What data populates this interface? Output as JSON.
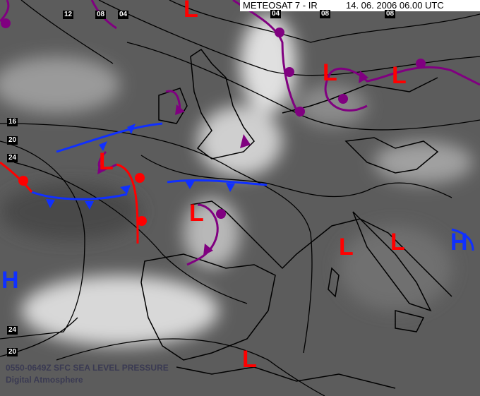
{
  "header": {
    "satellite": "METEOSAT 7 - IR",
    "datetime": "14. 06. 2006 06.00 UTC"
  },
  "isobar_labels": [
    {
      "id": "top-12",
      "text": "12"
    },
    {
      "id": "top-08a",
      "text": "08"
    },
    {
      "id": "top-04a",
      "text": "04"
    },
    {
      "id": "top-04b",
      "text": "04"
    },
    {
      "id": "top-08b",
      "text": "08"
    },
    {
      "id": "top-08c",
      "text": "08"
    },
    {
      "id": "left-16",
      "text": "16"
    },
    {
      "id": "left-20",
      "text": "20"
    },
    {
      "id": "left-24",
      "text": "24"
    },
    {
      "id": "bottom-24",
      "text": "24"
    },
    {
      "id": "bottom-20",
      "text": "20"
    }
  ],
  "pressure_systems": [
    {
      "type": "L",
      "color": "#ff0000"
    },
    {
      "type": "L",
      "color": "#ff0000"
    },
    {
      "type": "L",
      "color": "#ff0000"
    },
    {
      "type": "L",
      "color": "#ff0000"
    },
    {
      "type": "L",
      "color": "#ff0000"
    },
    {
      "type": "L",
      "color": "#ff0000"
    },
    {
      "type": "L",
      "color": "#ff0000"
    },
    {
      "type": "L",
      "color": "#ff0000"
    },
    {
      "type": "H",
      "color": "#1030ff"
    },
    {
      "type": "H",
      "color": "#1030ff"
    }
  ],
  "front_colors": {
    "cold": "#1030ff",
    "warm": "#ff0000",
    "occluded": "#800080"
  },
  "caption": {
    "line1": "0550-0649Z SFC SEA LEVEL PRESSURE",
    "line2": "Digital Atmosphere"
  }
}
